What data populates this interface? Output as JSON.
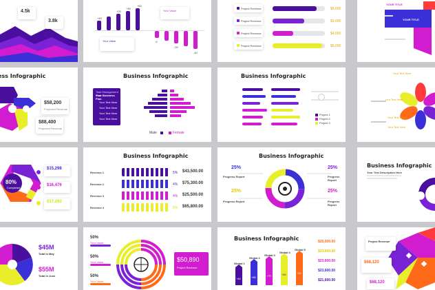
{
  "colors": {
    "purple": "#4b0fa0",
    "violet": "#7a22d6",
    "magenta": "#d11ccf",
    "pink": "#e82a9a",
    "blue": "#3b2fd8",
    "yellow": "#e8ef2a",
    "lime": "#d2e31f",
    "orange": "#ff6a1a",
    "red": "#ff3b3b",
    "gray": "#e6e6ea"
  },
  "s1": {
    "v1": "4.5k",
    "v2": "3.8k"
  },
  "s2": {
    "pos_values": [
      "+40",
      "+20",
      "+30",
      "+60"
    ],
    "neg_values": [
      "-5",
      "-15",
      "-20",
      "-30",
      "-40",
      "-50"
    ],
    "card_title": "Your Value",
    "card_title2": "Your Value"
  },
  "s3": {
    "items": [
      "Project Revenue",
      "Project Revenue",
      "Project Revenue",
      "Project Revenue"
    ],
    "values": [
      "$5,000",
      "$3,000",
      "$4,000",
      "$5,000"
    ]
  },
  "s4": {
    "label": "YOUR TITLE",
    "label2": "YOUR TITLE"
  },
  "s5": {
    "title": "Business Infographic",
    "v1": "$58,200",
    "v2": "$88,400",
    "sub1": "Projected Revenue",
    "sub2": "Projected Revenue"
  },
  "s6": {
    "title": "Business Infographic",
    "panel_title": "Your Business Plan",
    "panel_sub": "Task Management Plan",
    "panel_items": [
      "Your Text Here",
      "Your Text Here",
      "Your Text Here",
      "Your Text Here"
    ],
    "legend_male": "Male",
    "legend_female": "Female"
  },
  "s7": {
    "title": "Business Infographic",
    "legend": [
      "Project 1",
      "Project 2",
      "Project 3"
    ]
  },
  "s8": {
    "labels": [
      "Your Text Here",
      "Your Text Here",
      "Your Text Here",
      "Your Text Here"
    ]
  },
  "s9": {
    "center": "80%",
    "center_sub": "Completed",
    "values": [
      "$15,298",
      "$16,476",
      "$17,292"
    ]
  },
  "s10": {
    "title": "Business Infographic",
    "rows": [
      "Revenue 1",
      "Revenue 2",
      "Revenue 3",
      "Revenue 4"
    ],
    "pct": [
      "5%",
      "4%",
      "4%",
      "5%"
    ],
    "values": [
      "$43,500.00",
      "$75,300.00",
      "$25,500.00",
      "$65,800.00"
    ]
  },
  "s11": {
    "title": "Business Infographic",
    "pct": [
      "25%",
      "25%",
      "25%",
      "25%"
    ],
    "label": "Progress Report"
  },
  "s12": {
    "title": "Business Infographic",
    "sub": "Your Text Description Here"
  },
  "s13": {
    "v1": "$45M",
    "v1_sub": "Total In May",
    "v2": "$55M",
    "v2_sub": "Total In June"
  },
  "s14": {
    "pct": [
      "50%",
      "50%",
      "50%"
    ],
    "pct_sub": [
      "Your Value",
      "Your Value",
      "Your Value"
    ],
    "big_value": "$50,890",
    "big_sub": "Project Revenue"
  },
  "s15": {
    "title": "Business Infographic",
    "cols": [
      "Global 1",
      "Global 2",
      "Global 3",
      "Global 4",
      "Global 5"
    ],
    "pct": [
      "+40",
      "+80",
      "+70",
      "+60",
      "+20"
    ],
    "values": [
      "$25,500.00",
      "$23,600.00",
      "$23,600.00",
      "$23,600.00",
      "$21,600.00"
    ]
  },
  "s16": {
    "v1": "$68,120",
    "v2": "$68,120",
    "sub": "Project Revenue"
  }
}
